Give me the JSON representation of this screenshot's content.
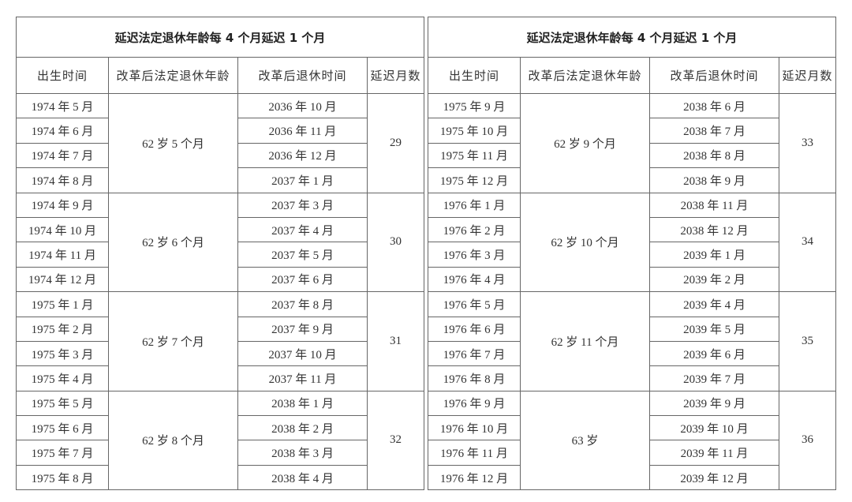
{
  "tables": [
    {
      "title": "延迟法定退休年龄每 4 个月延迟 1 个月",
      "headers": [
        "出生时间",
        "改革后法定退休年龄",
        "改革后退休时间",
        "延迟月数"
      ],
      "groups": [
        {
          "age": "62 岁 5 个月",
          "delay": 29,
          "rows": [
            [
              "1974 年 5 月",
              "2036 年 10 月"
            ],
            [
              "1974 年 6 月",
              "2036 年 11 月"
            ],
            [
              "1974 年 7 月",
              "2036 年 12 月"
            ],
            [
              "1974 年 8 月",
              "2037 年 1 月"
            ]
          ]
        },
        {
          "age": "62 岁 6 个月",
          "delay": 30,
          "rows": [
            [
              "1974 年 9 月",
              "2037 年 3 月"
            ],
            [
              "1974 年 10 月",
              "2037 年 4 月"
            ],
            [
              "1974 年 11 月",
              "2037 年 5 月"
            ],
            [
              "1974 年 12 月",
              "2037 年 6 月"
            ]
          ]
        },
        {
          "age": "62 岁 7 个月",
          "delay": 31,
          "rows": [
            [
              "1975 年 1 月",
              "2037 年 8 月"
            ],
            [
              "1975 年 2 月",
              "2037 年 9 月"
            ],
            [
              "1975 年 3 月",
              "2037 年 10 月"
            ],
            [
              "1975 年 4 月",
              "2037 年 11 月"
            ]
          ]
        },
        {
          "age": "62 岁 8 个月",
          "delay": 32,
          "rows": [
            [
              "1975 年 5 月",
              "2038 年 1 月"
            ],
            [
              "1975 年 6 月",
              "2038 年 2 月"
            ],
            [
              "1975 年 7 月",
              "2038 年 3 月"
            ],
            [
              "1975 年 8 月",
              "2038 年 4 月"
            ]
          ]
        }
      ]
    },
    {
      "title": "延迟法定退休年龄每 4 个月延迟 1 个月",
      "headers": [
        "出生时间",
        "改革后法定退休年龄",
        "改革后退休时间",
        "延迟月数"
      ],
      "groups": [
        {
          "age": "62 岁 9 个月",
          "delay": 33,
          "rows": [
            [
              "1975 年 9 月",
              "2038 年 6 月"
            ],
            [
              "1975 年 10 月",
              "2038 年 7 月"
            ],
            [
              "1975 年 11 月",
              "2038 年 8 月"
            ],
            [
              "1975 年 12 月",
              "2038 年 9 月"
            ]
          ]
        },
        {
          "age": "62 岁 10 个月",
          "delay": 34,
          "rows": [
            [
              "1976 年 1 月",
              "2038 年 11 月"
            ],
            [
              "1976 年 2 月",
              "2038 年 12 月"
            ],
            [
              "1976 年 3 月",
              "2039 年 1 月"
            ],
            [
              "1976 年 4 月",
              "2039 年 2 月"
            ]
          ]
        },
        {
          "age": "62 岁 11 个月",
          "delay": 35,
          "rows": [
            [
              "1976 年 5 月",
              "2039 年 4 月"
            ],
            [
              "1976 年 6 月",
              "2039 年 5 月"
            ],
            [
              "1976 年 7 月",
              "2039 年 6 月"
            ],
            [
              "1976 年 8 月",
              "2039 年 7 月"
            ]
          ]
        },
        {
          "age": "63 岁",
          "delay": 36,
          "rows": [
            [
              "1976 年 9 月",
              "2039 年 9 月"
            ],
            [
              "1976 年 10 月",
              "2039 年 10 月"
            ],
            [
              "1976 年 11 月",
              "2039 年 11 月"
            ],
            [
              "1976 年 12 月",
              "2039 年 12 月"
            ]
          ]
        }
      ]
    }
  ]
}
